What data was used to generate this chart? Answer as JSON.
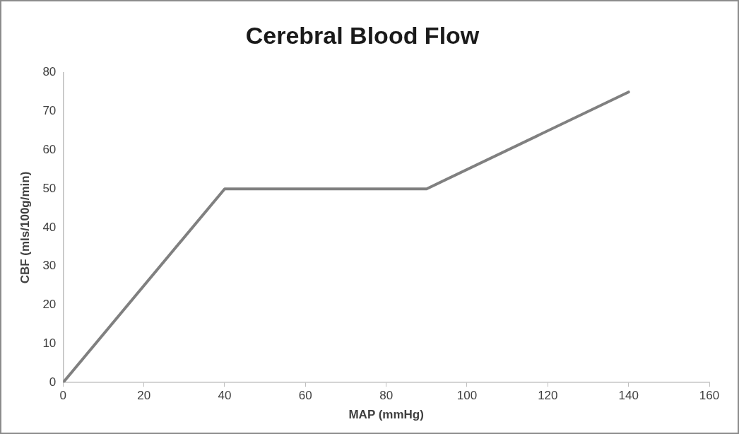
{
  "chart_data": {
    "type": "line",
    "title": "Cerebral Blood Flow",
    "xlabel": "MAP (mmHg)",
    "ylabel": "CBF (mls/100g/min)",
    "x": [
      0,
      40,
      90,
      140
    ],
    "series": [
      {
        "color": "#808080",
        "values": [
          0,
          50,
          50,
          75
        ]
      }
    ],
    "xlim": [
      0,
      160
    ],
    "xticks": [
      0,
      20,
      40,
      60,
      80,
      100,
      120,
      140,
      160
    ],
    "ylim": [
      0,
      80
    ],
    "yticks": [
      0,
      10,
      20,
      30,
      40,
      50,
      60,
      70,
      80
    ],
    "grid": false,
    "legend": false,
    "marker": "none",
    "line_style": "solid"
  }
}
